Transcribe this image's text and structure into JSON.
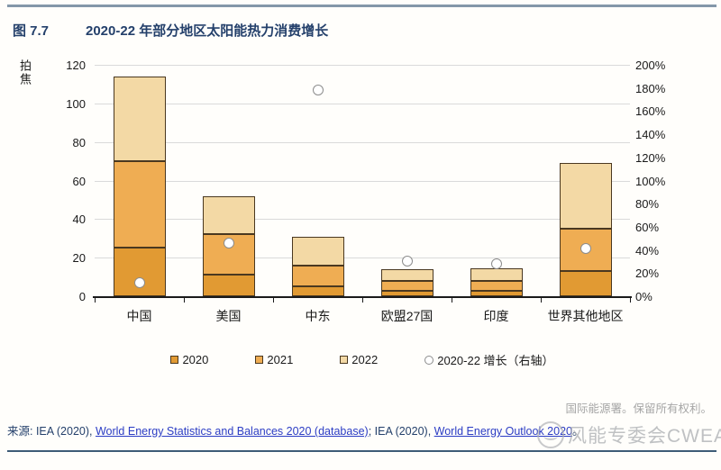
{
  "header": {
    "figure_label": "图 7.7",
    "title": "2020-22 年部分地区太阳能热力消费增长"
  },
  "chart_data": {
    "type": "bar",
    "stacked": true,
    "title": "2020-22 年部分地区太阳能热力消费增长",
    "categories": [
      "中国",
      "美国",
      "中东",
      "欧盟27国",
      "印度",
      "世界其他地区"
    ],
    "series": [
      {
        "name": "2020",
        "color": "#E19A33",
        "values": [
          25,
          11,
          5,
          3,
          3,
          13
        ]
      },
      {
        "name": "2021",
        "color": "#EFAD53",
        "values": [
          45,
          21,
          11,
          5,
          5,
          22
        ]
      },
      {
        "name": "2022",
        "color": "#F3D9A5",
        "values": [
          44,
          20,
          15,
          6,
          6.5,
          34
        ]
      }
    ],
    "scatter_series": {
      "name": "2020-22 增长（右轴）",
      "marker": "circle",
      "axis": "right",
      "values_pct": [
        12,
        46,
        178,
        30,
        28,
        41
      ]
    },
    "left_axis": {
      "label": "拍焦",
      "min": 0,
      "max": 120,
      "step": 20
    },
    "right_axis": {
      "min": 0,
      "max": 200,
      "step": 20,
      "suffix": "%"
    },
    "grid": true,
    "legend_position": "bottom"
  },
  "footer": {
    "rights": "国际能源署。保留所有权利。",
    "source": {
      "prefix": "来源: ",
      "t1": "IEA (2020), ",
      "link1": "World Energy Statistics and Balances 2020 (database)",
      "t2": "; IEA (2020), ",
      "link2": "World Energy Outlook 2020",
      "suffix": "。"
    }
  },
  "watermark": {
    "text": "风能专委会CWEA"
  },
  "colors": {
    "accent_navy": "#24406B",
    "link_blue": "#2B3CC4",
    "grid": "#DADADA",
    "bar_border": "#4A3820",
    "marker_border": "#8C8C8C",
    "top_rule": "#8497A9",
    "bottom_rule": "#3E5C77",
    "rights_gray": "#A6A6A6"
  }
}
